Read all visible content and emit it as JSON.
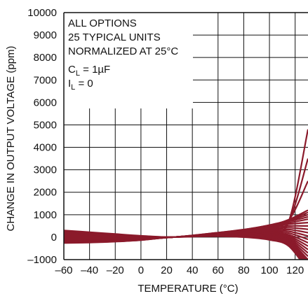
{
  "chart_data": {
    "type": "line",
    "title": "",
    "xlabel": "TEMPERATURE (°C)",
    "ylabel": "CHANGE IN OUTPUT VOLTAGE (ppm)",
    "xlim": [
      -60,
      130
    ],
    "ylim": [
      -1000,
      10000
    ],
    "x_ticks": [
      -60,
      -40,
      -20,
      0,
      20,
      40,
      60,
      80,
      100,
      120
    ],
    "x_tick_labels": [
      "–60",
      "–40",
      "–20",
      "0",
      "20",
      "40",
      "60",
      "80",
      "100",
      "120"
    ],
    "y_ticks": [
      -1000,
      0,
      1000,
      2000,
      3000,
      4000,
      5000,
      6000,
      7000,
      8000,
      9000,
      10000
    ],
    "y_tick_labels": [
      "–1000",
      "0",
      "1000",
      "2000",
      "3000",
      "4000",
      "5000",
      "6000",
      "7000",
      "8000",
      "9000",
      "10000"
    ],
    "grid": true,
    "line_color": "#8b1a2b",
    "annotation": {
      "line1": "ALL OPTIONS",
      "line2": "25 TYPICAL UNITS",
      "line3": "NORMALIZED AT 25°C",
      "line4_main": "C",
      "line4_sub": "L",
      "line4_rest": " = 1µF",
      "line5_main": "I",
      "line5_sub": "L",
      "line5_rest": " = 0"
    },
    "series": [
      {
        "x": [
          -60,
          -40,
          -20,
          0,
          25,
          60,
          80,
          100,
          115,
          130
        ],
        "y": [
          300,
          220,
          140,
          60,
          0,
          80,
          150,
          250,
          700,
          4800
        ]
      },
      {
        "x": [
          -60,
          -40,
          -20,
          0,
          25,
          60,
          80,
          100,
          115,
          130
        ],
        "y": [
          270,
          200,
          120,
          50,
          0,
          110,
          220,
          380,
          700,
          3500
        ]
      },
      {
        "x": [
          -60,
          -40,
          -20,
          0,
          25,
          60,
          80,
          100,
          115,
          130
        ],
        "y": [
          240,
          180,
          100,
          40,
          0,
          140,
          260,
          450,
          750,
          2500
        ]
      },
      {
        "x": [
          -60,
          -40,
          -20,
          0,
          25,
          60,
          80,
          100,
          115,
          130
        ],
        "y": [
          200,
          150,
          80,
          30,
          0,
          160,
          280,
          500,
          780,
          1200
        ]
      },
      {
        "x": [
          -60,
          -40,
          -20,
          0,
          25,
          60,
          80,
          100,
          115,
          130
        ],
        "y": [
          170,
          130,
          70,
          20,
          0,
          170,
          300,
          520,
          760,
          1100
        ]
      },
      {
        "x": [
          -60,
          -40,
          -20,
          0,
          25,
          60,
          80,
          100,
          115,
          130
        ],
        "y": [
          140,
          110,
          60,
          20,
          0,
          180,
          320,
          540,
          740,
          1000
        ]
      },
      {
        "x": [
          -60,
          -40,
          -20,
          0,
          25,
          60,
          80,
          100,
          115,
          130
        ],
        "y": [
          110,
          90,
          40,
          10,
          0,
          190,
          330,
          530,
          700,
          900
        ]
      },
      {
        "x": [
          -60,
          -40,
          -20,
          0,
          25,
          60,
          80,
          100,
          115,
          130
        ],
        "y": [
          80,
          60,
          20,
          0,
          0,
          200,
          340,
          510,
          640,
          800
        ]
      },
      {
        "x": [
          -60,
          -40,
          -20,
          0,
          25,
          60,
          80,
          100,
          115,
          130
        ],
        "y": [
          40,
          30,
          0,
          -10,
          0,
          200,
          330,
          480,
          580,
          650
        ]
      },
      {
        "x": [
          -60,
          -40,
          -20,
          0,
          25,
          60,
          80,
          100,
          115,
          130
        ],
        "y": [
          0,
          0,
          -20,
          -20,
          0,
          190,
          310,
          430,
          500,
          500
        ]
      },
      {
        "x": [
          -60,
          -40,
          -20,
          0,
          25,
          60,
          80,
          100,
          115,
          130
        ],
        "y": [
          -30,
          -30,
          -40,
          -30,
          0,
          180,
          290,
          380,
          420,
          350
        ]
      },
      {
        "x": [
          -60,
          -40,
          -20,
          0,
          25,
          60,
          80,
          100,
          115,
          130
        ],
        "y": [
          -60,
          -60,
          -60,
          -40,
          0,
          170,
          270,
          330,
          340,
          200
        ]
      },
      {
        "x": [
          -60,
          -40,
          -20,
          0,
          25,
          60,
          80,
          100,
          115,
          130
        ],
        "y": [
          -90,
          -80,
          -80,
          -50,
          0,
          160,
          240,
          280,
          260,
          50
        ]
      },
      {
        "x": [
          -60,
          -40,
          -20,
          0,
          25,
          60,
          80,
          100,
          115,
          130
        ],
        "y": [
          -110,
          -100,
          -100,
          -60,
          0,
          150,
          220,
          230,
          180,
          -100
        ]
      },
      {
        "x": [
          -60,
          -40,
          -20,
          0,
          25,
          60,
          80,
          100,
          115,
          130
        ],
        "y": [
          -130,
          -120,
          -110,
          -70,
          0,
          140,
          200,
          190,
          110,
          -250
        ]
      },
      {
        "x": [
          -60,
          -40,
          -20,
          0,
          25,
          60,
          80,
          100,
          115,
          130
        ],
        "y": [
          -150,
          -140,
          -120,
          -80,
          0,
          130,
          180,
          150,
          50,
          -400
        ]
      },
      {
        "x": [
          -60,
          -40,
          -20,
          0,
          25,
          60,
          80,
          100,
          115,
          130
        ],
        "y": [
          -170,
          -160,
          -140,
          -90,
          0,
          120,
          160,
          120,
          0,
          -550
        ]
      },
      {
        "x": [
          -60,
          -40,
          -20,
          0,
          25,
          60,
          80,
          100,
          115,
          130
        ],
        "y": [
          -190,
          -180,
          -150,
          -100,
          0,
          110,
          140,
          90,
          -50,
          -700
        ]
      },
      {
        "x": [
          -60,
          -40,
          -20,
          0,
          25,
          60,
          80,
          100,
          115,
          130
        ],
        "y": [
          -200,
          -190,
          -160,
          -100,
          0,
          100,
          120,
          60,
          -100,
          -850
        ]
      },
      {
        "x": [
          -60,
          -40,
          -20,
          0,
          25,
          60,
          80,
          100,
          115,
          130
        ],
        "y": [
          -210,
          -200,
          -170,
          -110,
          0,
          90,
          100,
          30,
          -150,
          -1000
        ]
      },
      {
        "x": [
          -60,
          -40,
          -20,
          0,
          25,
          60,
          80,
          100,
          115,
          130
        ],
        "y": [
          -220,
          -210,
          -180,
          -110,
          0,
          80,
          80,
          0,
          -200,
          -1100
        ]
      },
      {
        "x": [
          -60,
          -40,
          -20,
          0,
          25,
          60,
          80,
          100,
          115,
          130
        ],
        "y": [
          -230,
          -220,
          -180,
          -120,
          0,
          70,
          60,
          -30,
          -250,
          -1200
        ]
      },
      {
        "x": [
          -60,
          -40,
          -20,
          0,
          25,
          60,
          80,
          100,
          115,
          130
        ],
        "y": [
          -240,
          -225,
          -190,
          -120,
          0,
          60,
          40,
          -60,
          -300,
          -1300
        ]
      },
      {
        "x": [
          -60,
          -40,
          -20,
          0,
          25,
          60,
          80,
          100,
          115,
          130
        ],
        "y": [
          -250,
          -230,
          -190,
          -130,
          0,
          50,
          20,
          -90,
          -350,
          -1400
        ]
      },
      {
        "x": [
          -60,
          -40,
          -20,
          0,
          25,
          60,
          80,
          100,
          115,
          130
        ],
        "y": [
          -260,
          -240,
          -200,
          -130,
          0,
          40,
          0,
          -120,
          -400,
          -1500
        ]
      }
    ]
  }
}
